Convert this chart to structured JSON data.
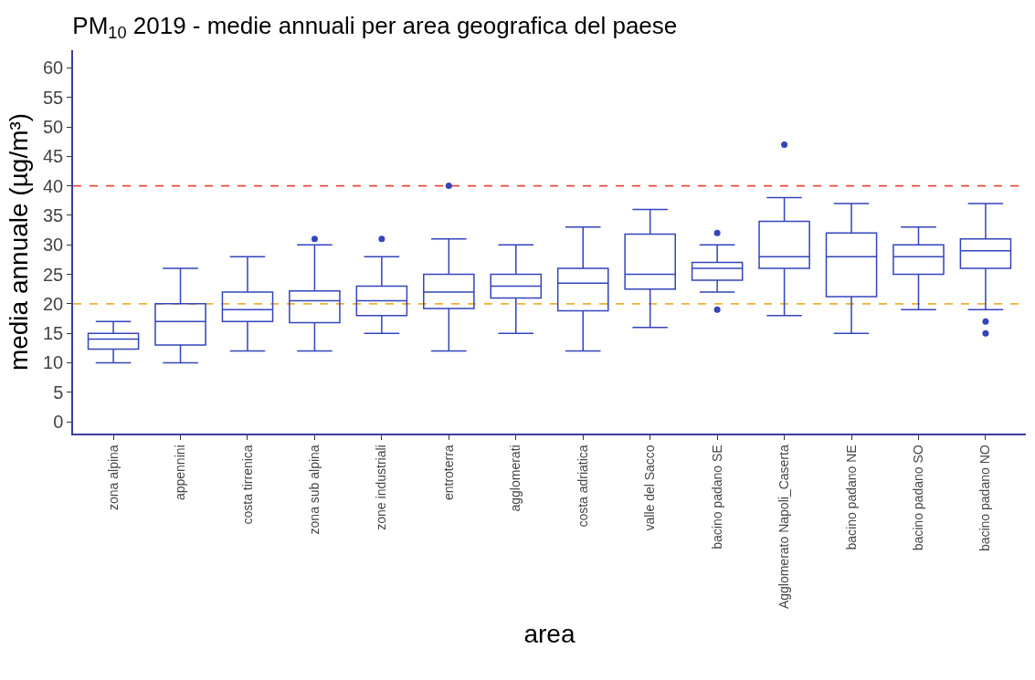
{
  "chart_data": {
    "type": "box",
    "title": "PM$_{10}$ 2019 - medie annuali per area geografica del paese",
    "xlabel": "area",
    "ylabel": "media annuale (µg/m³)",
    "categories": [
      "zona alpina",
      "appennini",
      "costa tirrenica",
      "zona sub alpina",
      "zone industriali",
      "entroterra",
      "agglomerati",
      "costa adriatica",
      "valle del Sacco",
      "bacino padano SE",
      "Agglomerato Napoli_Caserta",
      "bacino padano NE",
      "bacino padano SO",
      "bacino padano NO"
    ],
    "color": "#3344bb",
    "boxes": [
      {
        "low": 10,
        "q1": 12.3,
        "median": 14,
        "q3": 15,
        "high": 17
      },
      {
        "low": 10,
        "q1": 13,
        "median": 17,
        "q3": 20,
        "high": 26
      },
      {
        "low": 12,
        "q1": 17,
        "median": 19,
        "q3": 22,
        "high": 28
      },
      {
        "low": 12,
        "q1": 16.8,
        "median": 20.5,
        "q3": 22.2,
        "high": 30,
        "outliers": [
          31
        ]
      },
      {
        "low": 15,
        "q1": 18,
        "median": 20.5,
        "q3": 23,
        "high": 28,
        "outliers": [
          31
        ]
      },
      {
        "low": 12,
        "q1": 19.2,
        "median": 22,
        "q3": 25,
        "high": 31,
        "outliers": [
          40
        ]
      },
      {
        "low": 15,
        "q1": 21,
        "median": 23,
        "q3": 25,
        "high": 30
      },
      {
        "low": 12,
        "q1": 18.8,
        "median": 23.5,
        "q3": 26,
        "high": 33
      },
      {
        "low": 16,
        "q1": 22.5,
        "median": 25,
        "q3": 31.8,
        "high": 36
      },
      {
        "low": 22,
        "q1": 24,
        "median": 26,
        "q3": 27,
        "high": 30,
        "outliers": [
          32,
          19
        ]
      },
      {
        "low": 18,
        "q1": 26,
        "median": 28,
        "q3": 34,
        "high": 38,
        "outliers": [
          47
        ]
      },
      {
        "low": 15,
        "q1": 21.2,
        "median": 28,
        "q3": 32,
        "high": 37
      },
      {
        "low": 19,
        "q1": 25,
        "median": 28,
        "q3": 30,
        "high": 33
      },
      {
        "low": 19,
        "q1": 26,
        "median": 29,
        "q3": 31,
        "high": 37,
        "outliers": [
          17,
          15
        ]
      }
    ],
    "ylim": [
      -2,
      63
    ],
    "yticks": [
      0,
      5,
      10,
      15,
      20,
      25,
      30,
      35,
      40,
      45,
      50,
      55,
      60
    ],
    "ref_lines": [
      {
        "axis": "y",
        "value": 40,
        "color": "#e8473c",
        "line_style": "dashed"
      },
      {
        "axis": "y",
        "value": 20,
        "color": "#f0b030",
        "line_style": "dashed"
      }
    ],
    "grid": false
  }
}
